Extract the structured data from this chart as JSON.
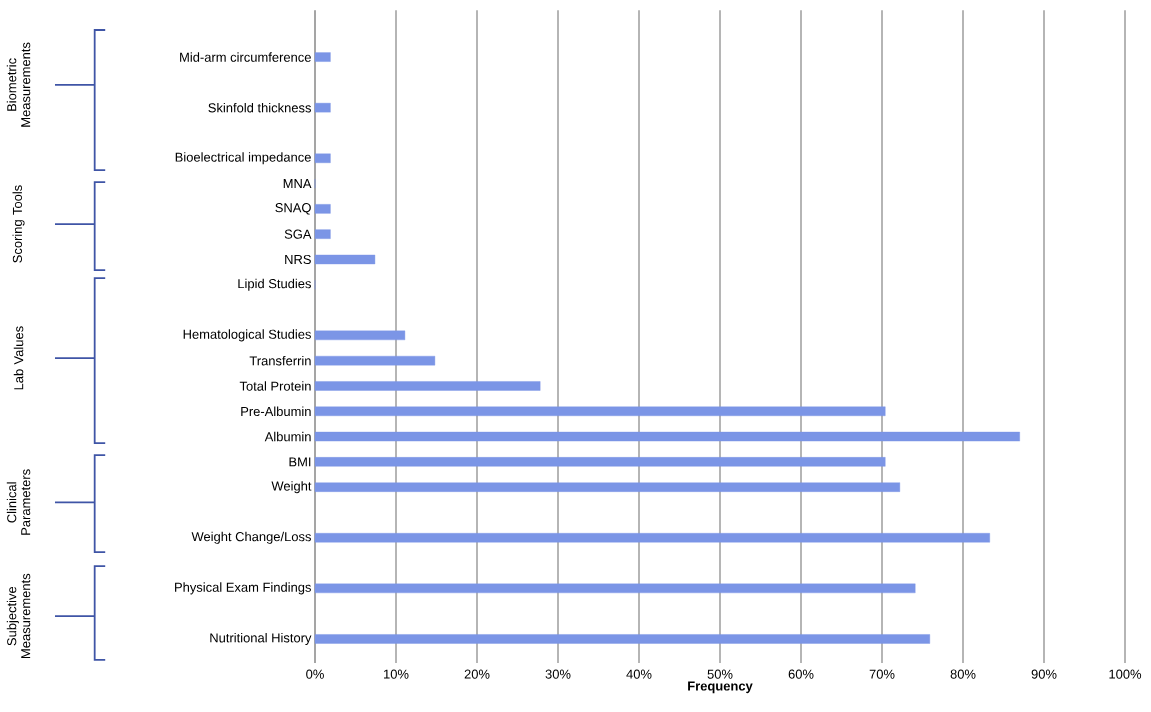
{
  "chart_data": {
    "type": "bar",
    "orientation": "horizontal",
    "xlabel": "Frequency",
    "categories": [
      "Mid-arm circumference",
      null,
      "Skinfold thickness",
      null,
      "Bioelectrical impedance",
      "MNA",
      "SNAQ",
      "SGA",
      "NRS",
      "Lipid Studies",
      null,
      "Hematological Studies",
      "Transferrin",
      "Total Protein",
      "Pre-Albumin",
      "Albumin",
      "BMI",
      "Weight",
      null,
      "Weight Change/Loss",
      null,
      "Physical Exam Findings",
      null,
      "Nutritional History"
    ],
    "values": [
      1.9,
      null,
      1.9,
      null,
      1.9,
      0,
      1.9,
      1.9,
      7.4,
      0,
      null,
      11.1,
      14.8,
      27.8,
      70.4,
      87.0,
      70.4,
      72.2,
      null,
      83.3,
      null,
      74.1,
      null,
      75.9
    ],
    "color": "#7b95e6",
    "xlim": [
      0,
      100
    ],
    "xticks": [
      {
        "value": 0,
        "label": "0%"
      },
      {
        "value": 10,
        "label": "10%"
      },
      {
        "value": 20,
        "label": "20%"
      },
      {
        "value": 30,
        "label": "30%"
      },
      {
        "value": 40,
        "label": "40%"
      },
      {
        "value": 50,
        "label": "50%"
      },
      {
        "value": 60,
        "label": "60%"
      },
      {
        "value": 70,
        "label": "70%"
      },
      {
        "value": 80,
        "label": "80%"
      },
      {
        "value": 90,
        "label": "90%"
      },
      {
        "value": 100,
        "label": "100%"
      }
    ],
    "grid": "x",
    "annotations": [
      "Biometric Measurements",
      "Scoring Tools",
      "Lab Values",
      "Clinical Parameters",
      "Subjective Measurements"
    ]
  }
}
